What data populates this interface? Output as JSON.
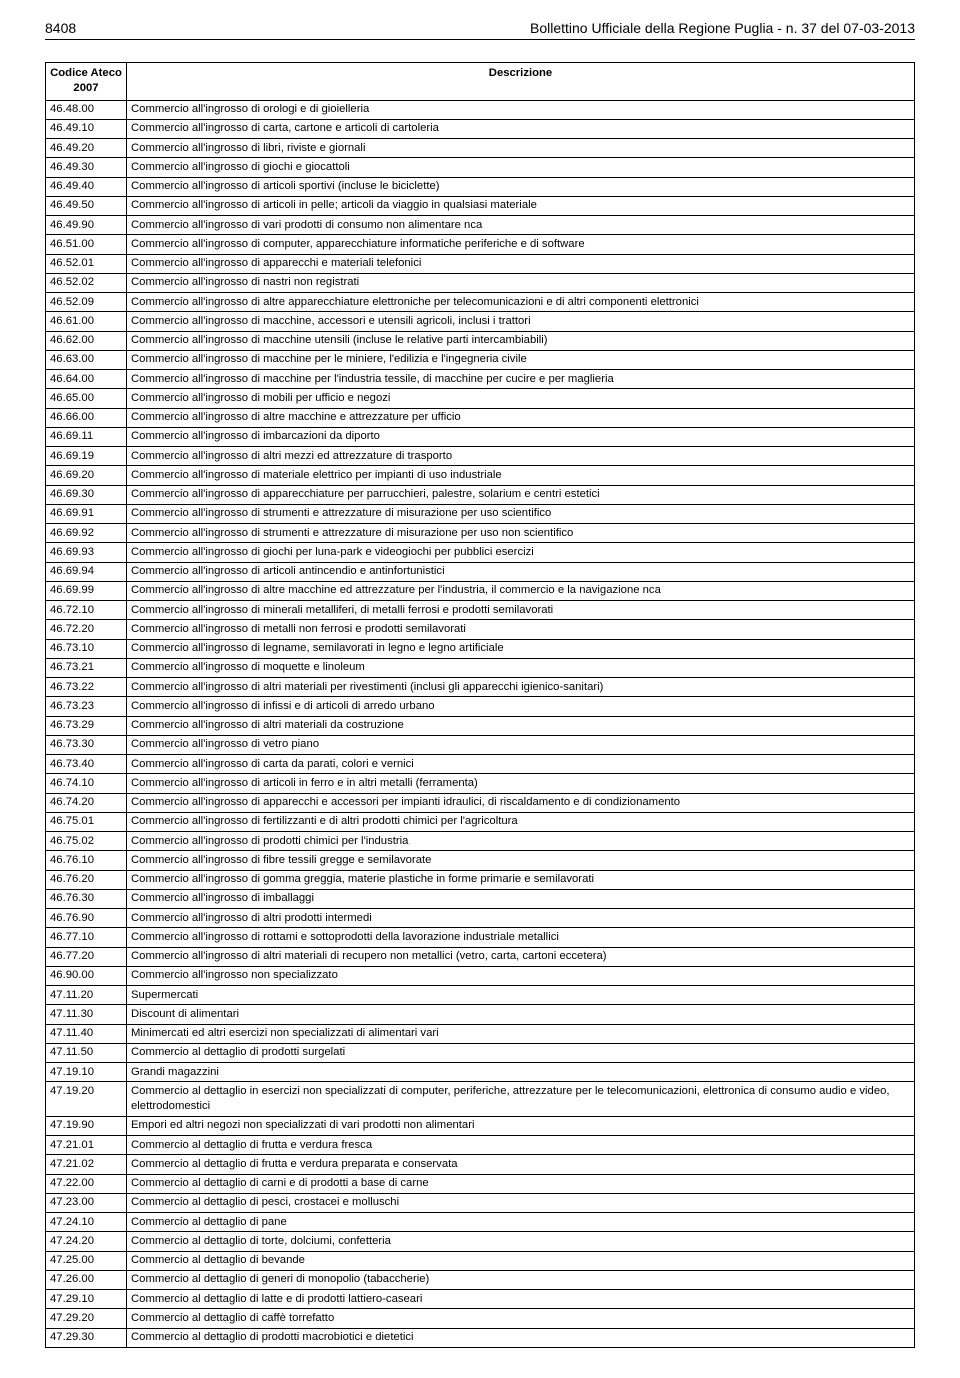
{
  "header": {
    "page_number": "8408",
    "title": "Bollettino Ufficiale della Regione Puglia - n. 37 del 07-03-2013"
  },
  "table": {
    "columns": [
      "Codice Ateco 2007",
      "Descrizione"
    ],
    "rows": [
      [
        "46.48.00",
        "Commercio all'ingrosso di orologi e di gioielleria"
      ],
      [
        "46.49.10",
        "Commercio all'ingrosso di carta, cartone e articoli di cartoleria"
      ],
      [
        "46.49.20",
        "Commercio all'ingrosso di libri, riviste e giornali"
      ],
      [
        "46.49.30",
        "Commercio all'ingrosso di giochi e giocattoli"
      ],
      [
        "46.49.40",
        "Commercio all'ingrosso di articoli sportivi (incluse le biciclette)"
      ],
      [
        "46.49.50",
        "Commercio all'ingrosso di articoli in pelle; articoli da viaggio in qualsiasi materiale"
      ],
      [
        "46.49.90",
        "Commercio all'ingrosso di vari prodotti di consumo non alimentare nca"
      ],
      [
        "46.51.00",
        "Commercio all'ingrosso di computer, apparecchiature informatiche periferiche e di software"
      ],
      [
        "46.52.01",
        "Commercio all'ingrosso di apparecchi e materiali telefonici"
      ],
      [
        "46.52.02",
        "Commercio all'ingrosso di nastri non registrati"
      ],
      [
        "46.52.09",
        "Commercio all'ingrosso di altre apparecchiature elettroniche per telecomunicazioni e di altri componenti elettronici"
      ],
      [
        "46.61.00",
        "Commercio all'ingrosso di macchine, accessori e utensili agricoli, inclusi i trattori"
      ],
      [
        "46.62.00",
        "Commercio all'ingrosso di macchine utensili (incluse le relative parti intercambiabili)"
      ],
      [
        "46.63.00",
        "Commercio all'ingrosso di macchine per le miniere, l'edilizia e l'ingegneria civile"
      ],
      [
        "46.64.00",
        "Commercio all'ingrosso di macchine per l'industria tessile, di macchine per cucire e per maglieria"
      ],
      [
        "46.65.00",
        "Commercio all'ingrosso di mobili per ufficio e negozi"
      ],
      [
        "46.66.00",
        "Commercio all'ingrosso di altre macchine e attrezzature per ufficio"
      ],
      [
        "46.69.11",
        "Commercio all'ingrosso di imbarcazioni da diporto"
      ],
      [
        "46.69.19",
        "Commercio all'ingrosso di altri mezzi ed attrezzature di trasporto"
      ],
      [
        "46.69.20",
        "Commercio all'ingrosso di materiale elettrico per impianti di uso industriale"
      ],
      [
        "46.69.30",
        "Commercio all'ingrosso di apparecchiature per parrucchieri, palestre, solarium e centri estetici"
      ],
      [
        "46.69.91",
        "Commercio all'ingrosso di strumenti e attrezzature di misurazione per uso scientifico"
      ],
      [
        "46.69.92",
        "Commercio all'ingrosso di strumenti e attrezzature di misurazione per uso non scientifico"
      ],
      [
        "46.69.93",
        "Commercio all'ingrosso di giochi per luna-park e videogiochi per pubblici esercizi"
      ],
      [
        "46.69.94",
        "Commercio all'ingrosso di articoli antincendio e antinfortunistici"
      ],
      [
        "46.69.99",
        "Commercio all'ingrosso di altre macchine ed attrezzature per l'industria, il commercio e la navigazione nca"
      ],
      [
        "46.72.10",
        "Commercio all'ingrosso di minerali metalliferi, di metalli ferrosi e prodotti semilavorati"
      ],
      [
        "46.72.20",
        "Commercio all'ingrosso di metalli non ferrosi e prodotti semilavorati"
      ],
      [
        "46.73.10",
        "Commercio all'ingrosso di legname, semilavorati in legno e legno artificiale"
      ],
      [
        "46.73.21",
        "Commercio all'ingrosso di moquette e linoleum"
      ],
      [
        "46.73.22",
        "Commercio all'ingrosso di altri materiali per rivestimenti (inclusi gli apparecchi igienico-sanitari)"
      ],
      [
        "46.73.23",
        "Commercio all'ingrosso di infissi e di articoli di arredo urbano"
      ],
      [
        "46.73.29",
        "Commercio all'ingrosso di altri materiali da costruzione"
      ],
      [
        "46.73.30",
        "Commercio all'ingrosso di vetro piano"
      ],
      [
        "46.73.40",
        "Commercio all'ingrosso di carta da parati, colori e vernici"
      ],
      [
        "46.74.10",
        "Commercio all'ingrosso di articoli in ferro e in altri metalli (ferramenta)"
      ],
      [
        "46.74.20",
        "Commercio all'ingrosso di apparecchi e accessori per impianti idraulici, di riscaldamento e di condizionamento"
      ],
      [
        "46.75.01",
        "Commercio all'ingrosso di fertilizzanti e di altri prodotti chimici per l'agricoltura"
      ],
      [
        "46.75.02",
        "Commercio all'ingrosso di prodotti chimici per l'industria"
      ],
      [
        "46.76.10",
        "Commercio all'ingrosso di fibre tessili gregge e semilavorate"
      ],
      [
        "46.76.20",
        "Commercio all'ingrosso di gomma greggia, materie plastiche in forme primarie e semilavorati"
      ],
      [
        "46.76.30",
        "Commercio all'ingrosso di imballaggi"
      ],
      [
        "46.76.90",
        "Commercio all'ingrosso di altri prodotti intermedi"
      ],
      [
        "46.77.10",
        "Commercio all'ingrosso di rottami e sottoprodotti della lavorazione industriale metallici"
      ],
      [
        "46.77.20",
        "Commercio all'ingrosso di altri materiali di recupero non metallici (vetro, carta, cartoni eccetera)"
      ],
      [
        "46.90.00",
        "Commercio all'ingrosso non specializzato"
      ],
      [
        "47.11.20",
        "Supermercati"
      ],
      [
        "47.11.30",
        "Discount di alimentari"
      ],
      [
        "47.11.40",
        "Minimercati ed altri esercizi non specializzati di alimentari vari"
      ],
      [
        "47.11.50",
        "Commercio al dettaglio di prodotti surgelati"
      ],
      [
        "47.19.10",
        "Grandi magazzini"
      ],
      [
        "47.19.20",
        "Commercio al dettaglio in esercizi non specializzati di computer, periferiche, attrezzature per le telecomunicazioni, elettronica di consumo audio e video, elettrodomestici"
      ],
      [
        "47.19.90",
        "Empori ed altri negozi non specializzati di vari prodotti non alimentari"
      ],
      [
        "47.21.01",
        "Commercio al dettaglio di frutta e verdura fresca"
      ],
      [
        "47.21.02",
        "Commercio al dettaglio di frutta e verdura preparata e conservata"
      ],
      [
        "47.22.00",
        "Commercio al dettaglio di carni e di prodotti a base di carne"
      ],
      [
        "47.23.00",
        "Commercio al dettaglio di pesci, crostacei e molluschi"
      ],
      [
        "47.24.10",
        "Commercio al dettaglio di pane"
      ],
      [
        "47.24.20",
        "Commercio al dettaglio di torte, dolciumi, confetteria"
      ],
      [
        "47.25.00",
        "Commercio al dettaglio di bevande"
      ],
      [
        "47.26.00",
        "Commercio al dettaglio di generi di monopolio (tabaccherie)"
      ],
      [
        "47.29.10",
        "Commercio al dettaglio di latte e di prodotti lattiero-caseari"
      ],
      [
        "47.29.20",
        "Commercio al dettaglio di caffè torrefatto"
      ],
      [
        "47.29.30",
        "Commercio al dettaglio di prodotti macrobiotici e dietetici"
      ]
    ]
  }
}
